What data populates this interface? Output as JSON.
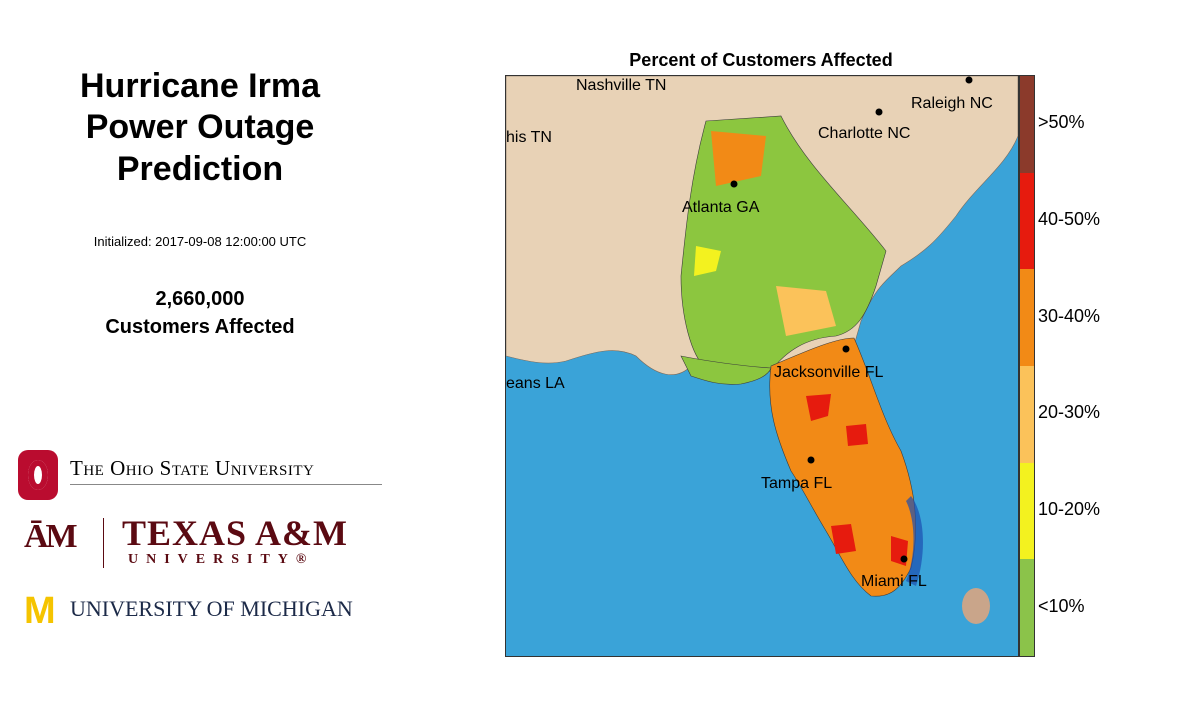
{
  "panel": {
    "title": "Hurricane Irma\nPower Outage\n  Prediction",
    "initialized": "Initialized: 2017-09-08 12:00:00 UTC",
    "customers_count": "2,660,000",
    "customers_label": "Customers Affected"
  },
  "logos": {
    "osu": "The Ohio State University",
    "tamu_mark": "ĀM",
    "tamu_name": "TEXAS A&M",
    "tamu_sub": "UNIVERSITY®",
    "umich_m": "M",
    "umich_name": "UNIVERSITY OF MICHIGAN"
  },
  "map": {
    "title": "Percent of Customers Affected",
    "cities": [
      {
        "name": "Nashville TN"
      },
      {
        "name": "Raleigh NC"
      },
      {
        "name": "Charlotte NC"
      },
      {
        "name": "his TN"
      },
      {
        "name": "Atlanta GA"
      },
      {
        "name": "Jacksonville FL"
      },
      {
        "name": "eans LA"
      },
      {
        "name": "Tampa FL"
      },
      {
        "name": "Miami FL"
      }
    ]
  },
  "legend": {
    "items": [
      {
        "label": ">50%",
        "color": "#8b3a2b"
      },
      {
        "label": "40-50%",
        "color": "#e61b0e"
      },
      {
        "label": "30-40%",
        "color": "#f28a16"
      },
      {
        "label": "20-30%",
        "color": "#fbc25a"
      },
      {
        "label": "10-20%",
        "color": "#f3f21f"
      },
      {
        "label": "<10%",
        "color": "#8bc34a"
      }
    ]
  }
}
